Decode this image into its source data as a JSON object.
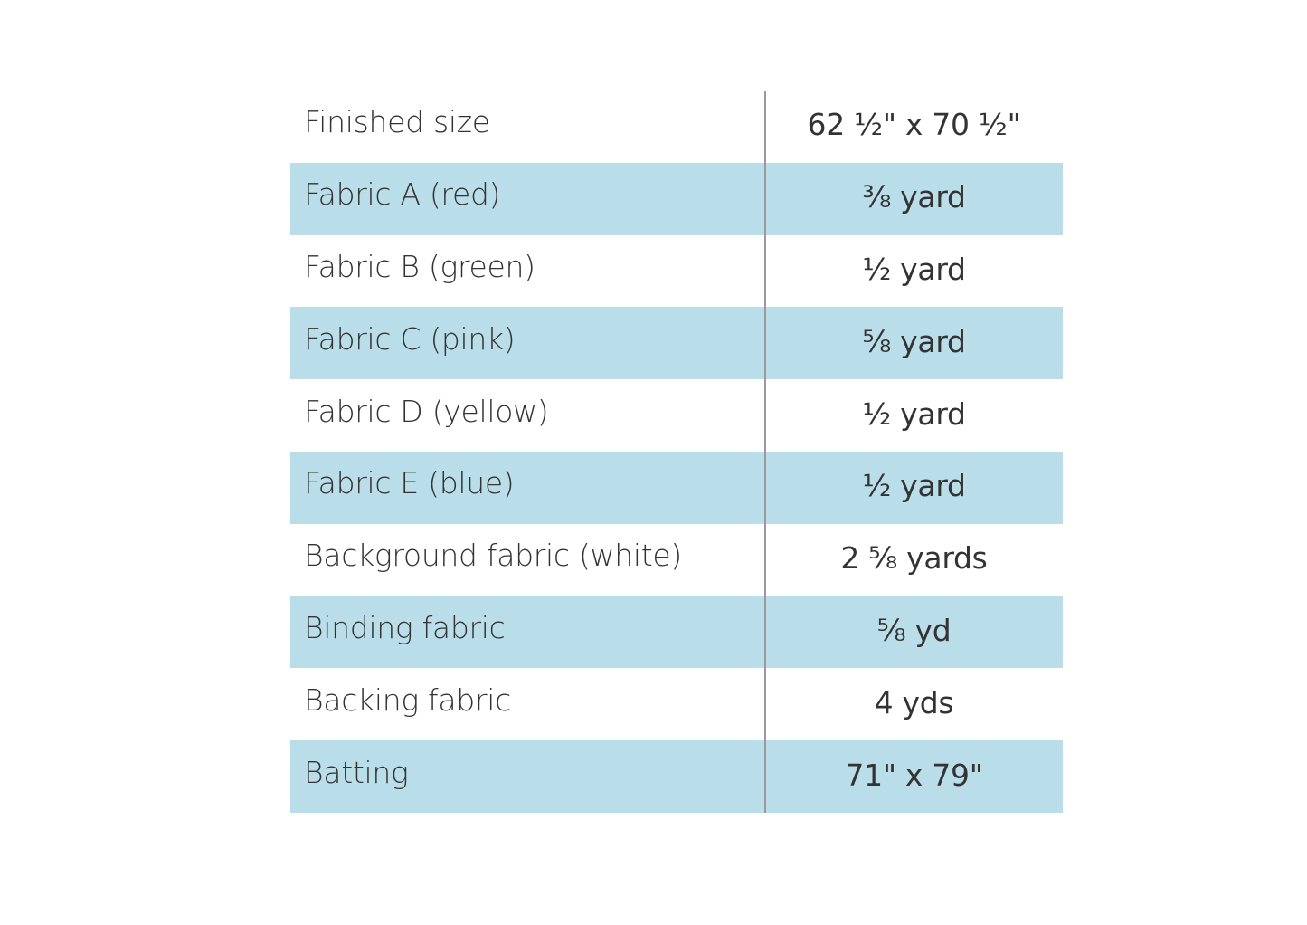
{
  "colors": {
    "stripe": "#b9dde9",
    "text": "#333333",
    "divider": "#9a9a9a"
  },
  "rows": [
    {
      "label": "Finished size",
      "value": "62 ½\" x 70 ½\""
    },
    {
      "label": "Fabric A (red)",
      "value": "⅜ yard"
    },
    {
      "label": "Fabric B (green)",
      "value": "½ yard"
    },
    {
      "label": "Fabric C (pink)",
      "value": "⅝ yard"
    },
    {
      "label": "Fabric D (yellow)",
      "value": "½ yard"
    },
    {
      "label": "Fabric E (blue)",
      "value": "½ yard"
    },
    {
      "label": "Background fabric (white)",
      "value": "2 ⅝ yards"
    },
    {
      "label": "Binding fabric",
      "value": "⅝ yd"
    },
    {
      "label": "Backing fabric",
      "value": "4 yds"
    },
    {
      "label": "Batting",
      "value": "71\" x 79\""
    }
  ]
}
